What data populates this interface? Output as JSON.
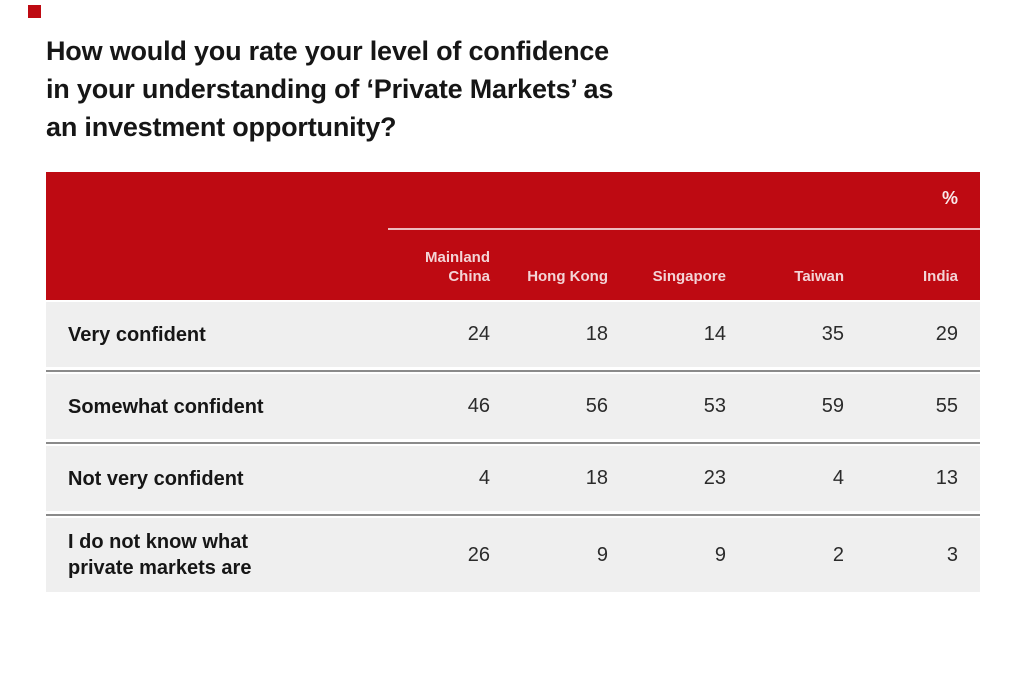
{
  "page": {
    "background": "#ffffff",
    "accent_red": "#BE0A12",
    "row_background": "#EFEFEF",
    "separator_gray": "#8A8A8A",
    "header_text_pink": "#F3D4D6"
  },
  "title": {
    "line1": "How would you rate your level of confidence",
    "line2": "in your understanding of ‘Private Markets’ as",
    "line3": "an investment opportunity?"
  },
  "table": {
    "unit_label": "%",
    "columns": [
      "Mainland China",
      "Hong Kong",
      "Singapore",
      "Taiwan",
      "India"
    ],
    "rows": [
      {
        "label": "Very confident",
        "values": [
          "24",
          "18",
          "14",
          "35",
          "29"
        ]
      },
      {
        "label": "Somewhat confident",
        "values": [
          "46",
          "56",
          "53",
          "59",
          "55"
        ]
      },
      {
        "label": "Not very confident",
        "values": [
          "4",
          "18",
          "23",
          "4",
          "13"
        ]
      },
      {
        "label": "I do not know what private markets are",
        "values": [
          "26",
          "9",
          "9",
          "2",
          "3"
        ]
      }
    ]
  },
  "chart_data": {
    "type": "table",
    "title": "How would you rate your level of confidence in your understanding of ‘Private Markets’ as an investment opportunity?",
    "unit": "%",
    "categories": [
      "Mainland China",
      "Hong Kong",
      "Singapore",
      "Taiwan",
      "India"
    ],
    "series": [
      {
        "name": "Very confident",
        "values": [
          24,
          18,
          14,
          35,
          29
        ]
      },
      {
        "name": "Somewhat confident",
        "values": [
          46,
          56,
          53,
          59,
          55
        ]
      },
      {
        "name": "Not very confident",
        "values": [
          4,
          18,
          23,
          4,
          13
        ]
      },
      {
        "name": "I do not know what private markets are",
        "values": [
          26,
          9,
          9,
          2,
          3
        ]
      }
    ],
    "legend_position": "none",
    "grid": false
  }
}
